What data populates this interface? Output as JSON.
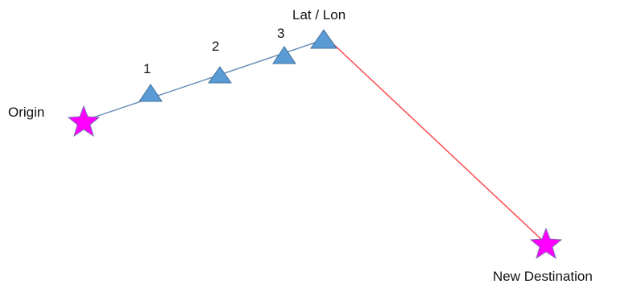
{
  "labels": {
    "origin": "Origin",
    "waypoint_1": "1",
    "waypoint_2": "2",
    "waypoint_3": "3",
    "current_position": "Lat / Lon",
    "destination": "New Destination"
  },
  "colors": {
    "star_fill": "#ff00ff",
    "star_stroke": "#7f6fb5",
    "triangle_fill": "#5b9bd5",
    "triangle_stroke": "#41719c",
    "traveled_path": "#6d8fb3",
    "new_route": "#ff4a4a"
  }
}
